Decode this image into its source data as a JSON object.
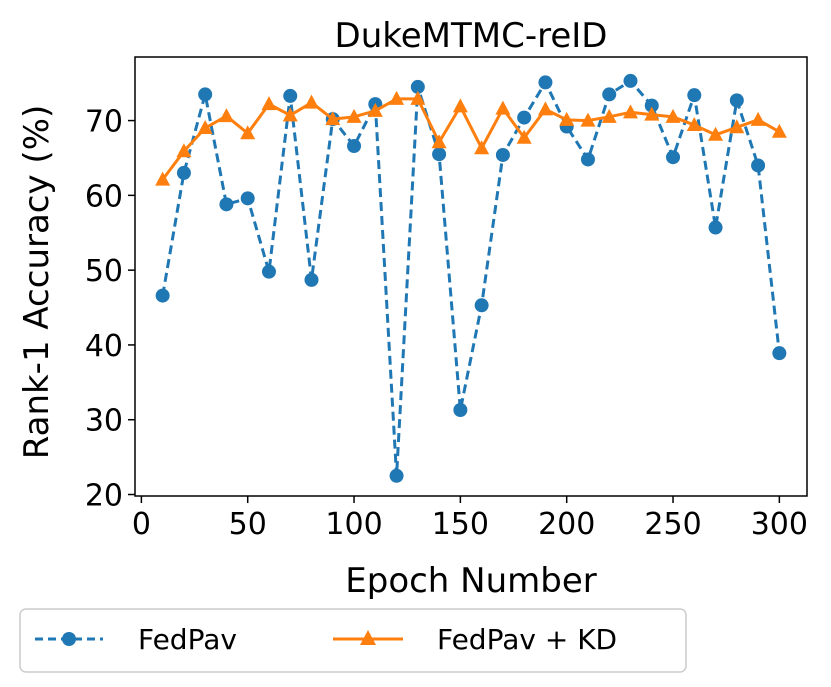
{
  "chart_data": {
    "type": "line",
    "title": "DukeMTMC-reID",
    "xlabel": "Epoch Number",
    "ylabel": "Rank-1 Accuracy (%)",
    "xlim": [
      -3,
      313
    ],
    "ylim": [
      19.8,
      78.5
    ],
    "xticks": [
      0,
      50,
      100,
      150,
      200,
      250,
      300
    ],
    "yticks": [
      20,
      30,
      40,
      50,
      60,
      70
    ],
    "x": [
      10,
      20,
      30,
      40,
      50,
      60,
      70,
      80,
      90,
      100,
      110,
      120,
      130,
      140,
      150,
      160,
      170,
      180,
      190,
      200,
      210,
      220,
      230,
      240,
      250,
      260,
      270,
      280,
      290,
      300
    ],
    "series": [
      {
        "name": "FedPav",
        "color": "#1f77b4",
        "style": "dashed",
        "marker": "circle",
        "values": [
          46.6,
          63.0,
          73.5,
          58.8,
          59.6,
          49.8,
          73.3,
          48.7,
          70.2,
          66.6,
          72.2,
          22.5,
          74.5,
          65.5,
          31.3,
          45.3,
          65.4,
          70.4,
          75.1,
          69.2,
          64.8,
          73.5,
          75.3,
          72.0,
          65.1,
          73.4,
          55.7,
          72.7,
          64.0,
          38.9
        ]
      },
      {
        "name": "FedPav + KD",
        "color": "#ff7f0e",
        "style": "solid",
        "marker": "triangle",
        "values": [
          62.1,
          65.9,
          69.0,
          70.6,
          68.3,
          72.2,
          70.7,
          72.4,
          70.2,
          70.5,
          71.3,
          72.9,
          72.9,
          67.1,
          71.9,
          66.3,
          71.6,
          67.7,
          71.5,
          70.1,
          70.0,
          70.5,
          71.1,
          70.8,
          70.5,
          69.4,
          68.1,
          69.1,
          70.1,
          68.5
        ]
      }
    ],
    "legend": "bottom-outside"
  }
}
